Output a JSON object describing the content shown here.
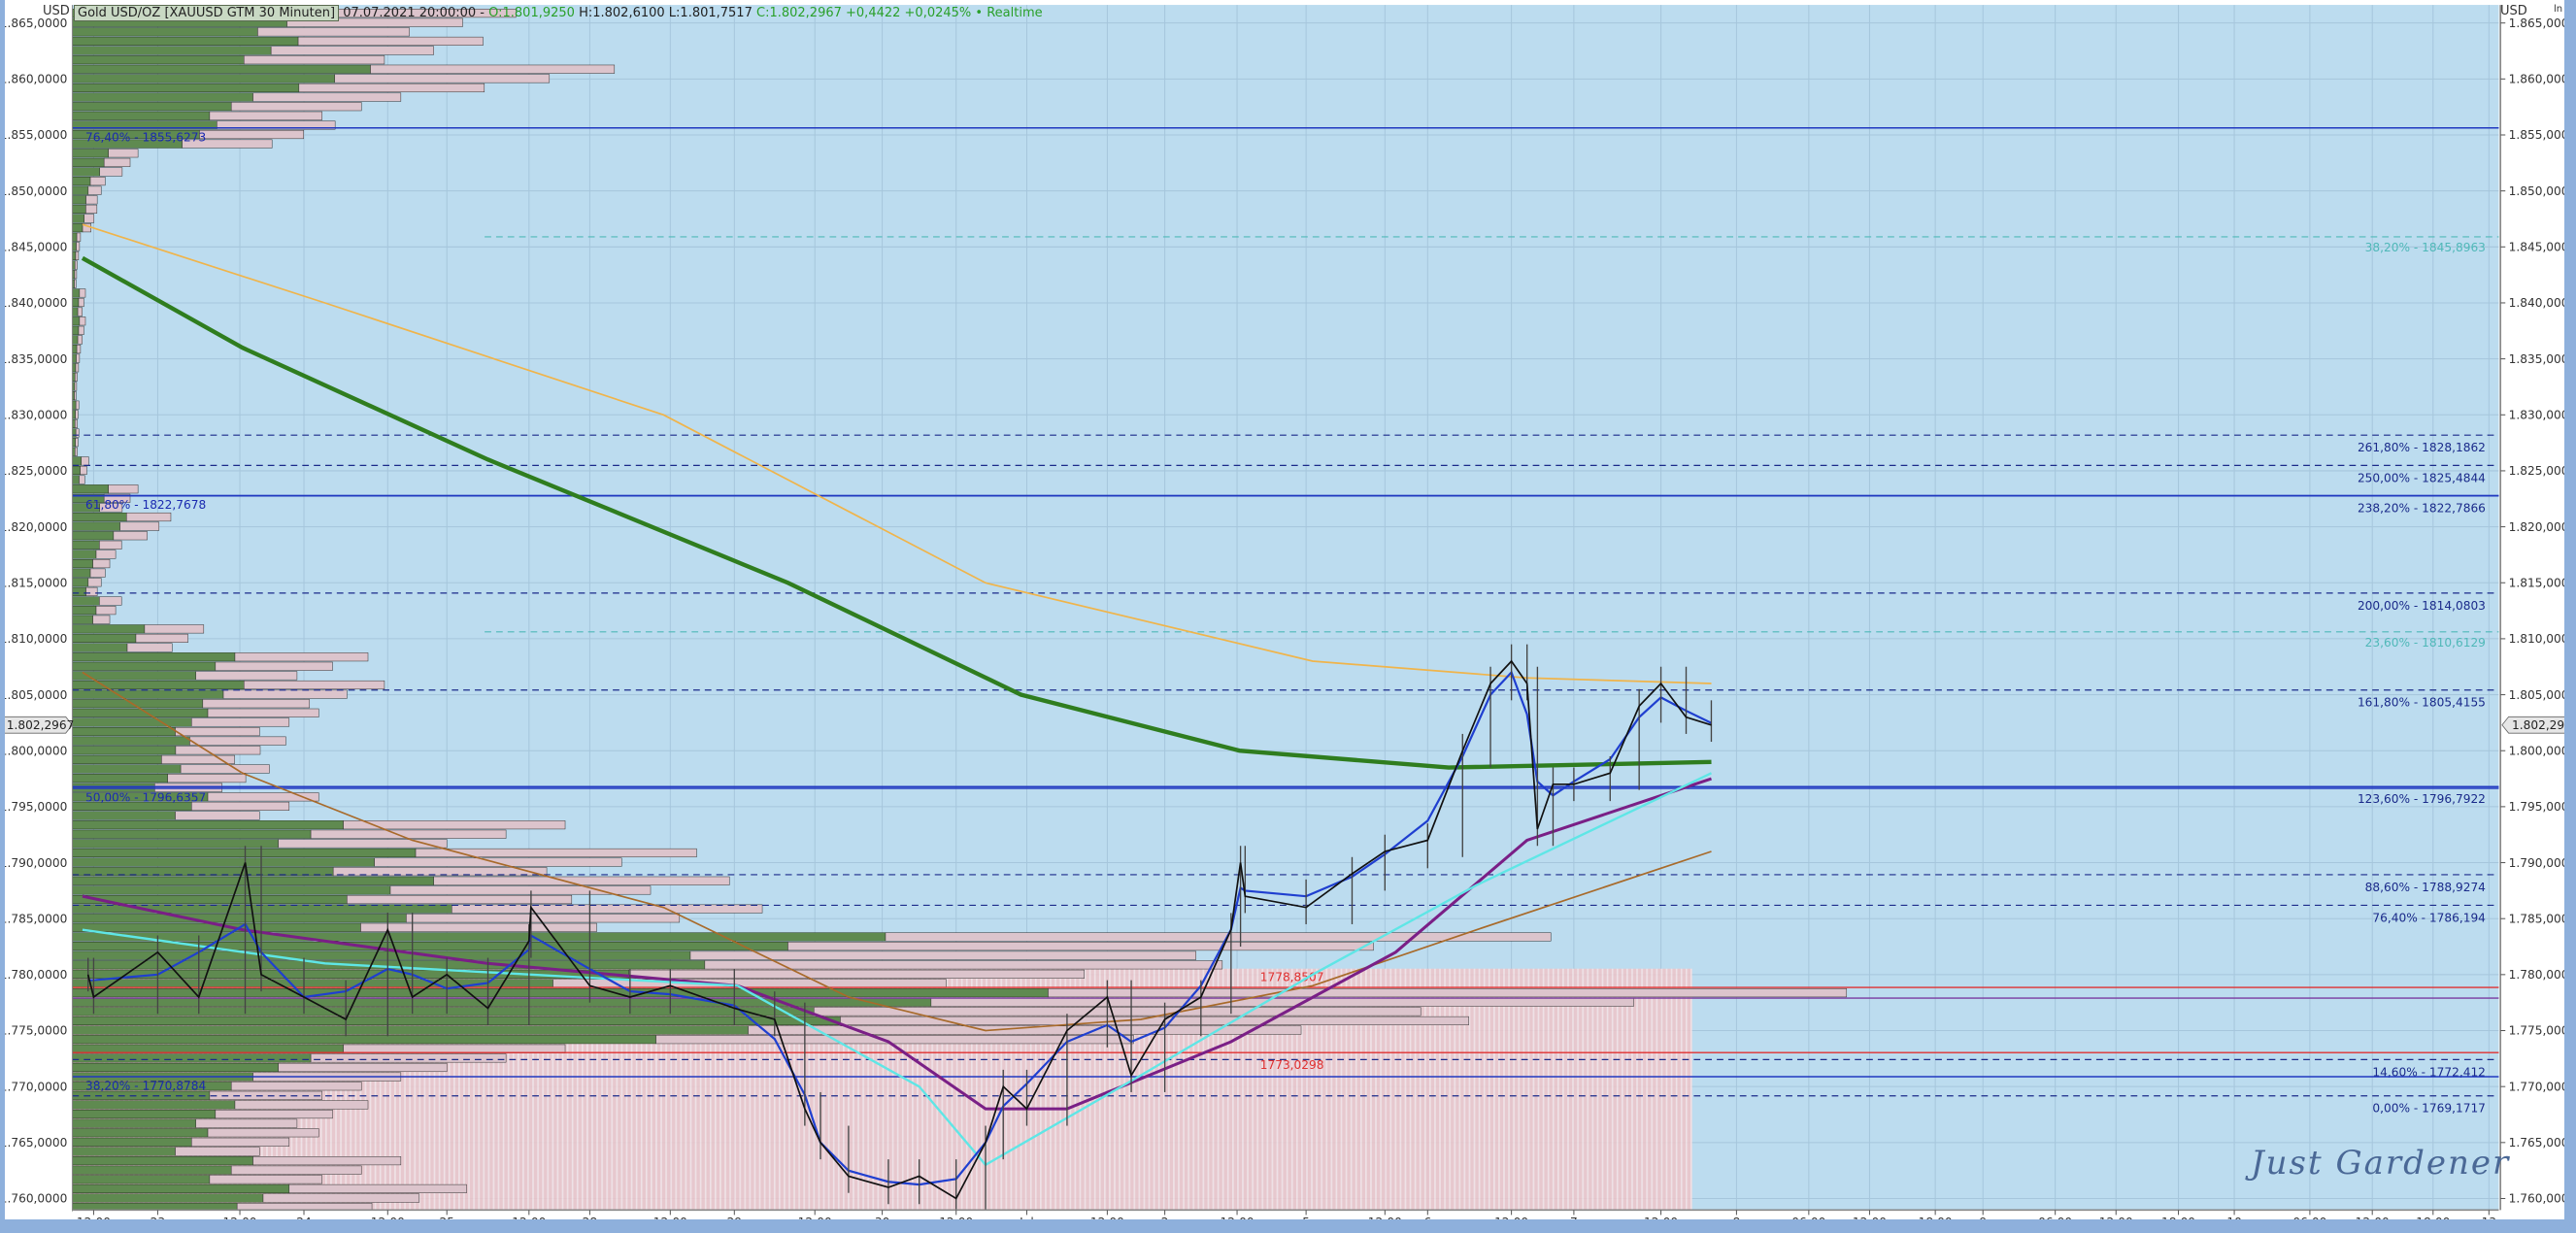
{
  "header": {
    "instrument": "Gold USD/OZ [XAUUSD GTM 30 Minuten]",
    "datetime": "07.07.2021 20:00:00 -",
    "open": "O:1.801,9250",
    "high_low": "H:1.802,6100 L:1.801,7517",
    "close_change": "C:1.802,2967 +0,4422 +0,0245%",
    "realtime": "• Realtime"
  },
  "axis": {
    "unit_left": "USD",
    "unit_right": "USD",
    "scale_icon": "ln",
    "current_price": "1.802,2967"
  },
  "watermark": "Just Gardener",
  "colors": {
    "plot_bg": "#bcdcef",
    "grid": "#a6c6dc",
    "price": "#111111",
    "fast_ma": "#1f3fd0",
    "ma_orange": "#f0b44a",
    "ma_green": "#2f7d1f",
    "ma_brown": "#a86a2a",
    "ma_purple": "#7a1f86",
    "ma_cyan": "#5fe6e6",
    "fib_dark": "#1a2a8a",
    "fib_cyan": "#4fb8b8",
    "support_red": "#e03030",
    "profile_green": "#5f8a50",
    "profile_pink": "#dcc4cc",
    "volume_pink": "#f0c8cc"
  },
  "chart_data": {
    "type": "candlestick",
    "title": "Gold USD/OZ [XAUUSD GTM 30 Minuten]",
    "ylabel": "USD",
    "ylim": [
      1760,
      1865
    ],
    "y_scale": "ln",
    "grid": true,
    "y_ticks": [
      "1.865,0000",
      "1.860,0000",
      "1.855,0000",
      "1.850,0000",
      "1.845,0000",
      "1.840,0000",
      "1.835,0000",
      "1.830,0000",
      "1.825,0000",
      "1.820,0000",
      "1.815,0000",
      "1.810,0000",
      "1.805,0000",
      "1.800,0000",
      "1.795,0000",
      "1.790,0000",
      "1.785,0000",
      "1.780,0000",
      "1.775,0000",
      "1.770,0000",
      "1.765,0000",
      "1.760,0000"
    ],
    "x_ticks": [
      {
        "label": "12:00",
        "time": "06-22 12:00"
      },
      {
        "label": "23",
        "time": "06-23 00:00"
      },
      {
        "label": "12:00",
        "time": "06-23 12:00"
      },
      {
        "label": "24",
        "time": "06-24 00:00"
      },
      {
        "label": "12:00",
        "time": "06-24 12:00"
      },
      {
        "label": "25",
        "time": "06-25 00:00"
      },
      {
        "label": "12:00",
        "time": "06-25 12:00"
      },
      {
        "label": "28",
        "time": "06-28 00:00"
      },
      {
        "label": "12:00",
        "time": "06-28 12:00"
      },
      {
        "label": "29",
        "time": "06-29 00:00"
      },
      {
        "label": "12:00",
        "time": "06-29 12:00"
      },
      {
        "label": "30",
        "time": "06-30 00:00"
      },
      {
        "label": "12:00",
        "time": "06-30 12:00"
      },
      {
        "label": "Jul",
        "time": "07-01 00:00"
      },
      {
        "label": "12:00",
        "time": "07-01 12:00"
      },
      {
        "label": "2",
        "time": "07-02 00:00"
      },
      {
        "label": "12:00",
        "time": "07-02 12:00"
      },
      {
        "label": "5",
        "time": "07-05 00:00"
      },
      {
        "label": "12:00",
        "time": "07-05 12:00"
      },
      {
        "label": "6",
        "time": "07-06 00:00"
      },
      {
        "label": "12:00",
        "time": "07-06 12:00"
      },
      {
        "label": "7",
        "time": "07-07 00:00"
      },
      {
        "label": "12:00",
        "time": "07-07 12:00"
      },
      {
        "label": "8",
        "time": "07-08 00:00"
      },
      {
        "label": "06:00",
        "time": "07-08 06:00"
      },
      {
        "label": "12:00",
        "time": "07-08 12:00"
      },
      {
        "label": "18:00",
        "time": "07-08 18:00"
      },
      {
        "label": "9",
        "time": "07-09 00:00"
      },
      {
        "label": "06:00",
        "time": "07-09 06:00"
      },
      {
        "label": "12:00",
        "time": "07-09 12:00"
      },
      {
        "label": "18:00",
        "time": "07-09 18:00"
      },
      {
        "label": "10",
        "time": "07-10 00:00"
      },
      {
        "label": "06:00",
        "time": "07-10 06:00"
      },
      {
        "label": "12:00",
        "time": "07-10 12:00"
      },
      {
        "label": "18:00",
        "time": "07-10 18:00"
      },
      {
        "label": "13",
        "time": "07-13 00:00"
      }
    ],
    "price_close": [
      [
        "06-22 11:00",
        1780
      ],
      [
        "06-22 12:00",
        1778
      ],
      [
        "06-23 00:00",
        1782
      ],
      [
        "06-23 06:00",
        1778
      ],
      [
        "06-23 13:00",
        1790
      ],
      [
        "06-23 16:00",
        1780
      ],
      [
        "06-24 00:00",
        1778
      ],
      [
        "06-24 06:00",
        1776
      ],
      [
        "06-24 12:00",
        1784
      ],
      [
        "06-24 17:00",
        1778
      ],
      [
        "06-25 00:00",
        1780
      ],
      [
        "06-25 06:00",
        1777
      ],
      [
        "06-25 12:00",
        1783
      ],
      [
        "06-25 14:00",
        1786
      ],
      [
        "06-28 00:00",
        1779
      ],
      [
        "06-28 06:00",
        1778
      ],
      [
        "06-28 12:00",
        1779
      ],
      [
        "06-29 00:00",
        1777
      ],
      [
        "06-29 06:00",
        1776
      ],
      [
        "06-29 10:30",
        1768
      ],
      [
        "06-29 13:00",
        1765
      ],
      [
        "06-29 18:00",
        1762
      ],
      [
        "06-30 01:00",
        1761
      ],
      [
        "06-30 06:00",
        1762
      ],
      [
        "06-30 12:00",
        1760
      ],
      [
        "06-30 17:00",
        1765
      ],
      [
        "06-30 20:00",
        1770
      ],
      [
        "07-01 00:00",
        1768
      ],
      [
        "07-01 06:00",
        1775
      ],
      [
        "07-01 12:00",
        1778
      ],
      [
        "07-01 17:00",
        1771
      ],
      [
        "07-02 00:00",
        1776
      ],
      [
        "07-02 06:00",
        1778
      ],
      [
        "07-02 11:00",
        1784
      ],
      [
        "07-02 15:00",
        1790
      ],
      [
        "07-02 19:00",
        1787
      ],
      [
        "07-05 00:00",
        1786
      ],
      [
        "07-05 07:00",
        1789
      ],
      [
        "07-05 12:00",
        1791
      ],
      [
        "07-06 00:00",
        1792
      ],
      [
        "07-06 05:00",
        1800
      ],
      [
        "07-06 09:00",
        1806
      ],
      [
        "07-06 12:00",
        1808
      ],
      [
        "07-06 15:00",
        1806
      ],
      [
        "07-06 17:00",
        1793
      ],
      [
        "07-06 20:00",
        1797
      ],
      [
        "07-07 00:00",
        1797
      ],
      [
        "07-07 05:00",
        1798
      ],
      [
        "07-07 09:00",
        1804
      ],
      [
        "07-07 12:00",
        1806
      ],
      [
        "07-07 16:00",
        1803
      ],
      [
        "07-07 20:00",
        1802.2967
      ]
    ],
    "moving_averages": [
      {
        "color": "ma_green",
        "points": [
          [
            "06-22 10:00",
            1844
          ],
          [
            "06-23 12:30",
            1836
          ],
          [
            "06-25 06:00",
            1826
          ],
          [
            "06-29 08:00",
            1815
          ],
          [
            "06-30 23:00",
            1805
          ],
          [
            "07-02 14:00",
            1800
          ],
          [
            "07-06 03:00",
            1798.5
          ],
          [
            "07-07 20:00",
            1799
          ]
        ]
      },
      {
        "color": "ma_orange",
        "points": [
          [
            "06-22 10:00",
            1847
          ],
          [
            "06-24 03:00",
            1840
          ],
          [
            "06-28 11:00",
            1830
          ],
          [
            "06-30 17:00",
            1815
          ],
          [
            "07-05 01:00",
            1808
          ],
          [
            "07-06 15:00",
            1806.5
          ],
          [
            "07-07 20:00",
            1806
          ]
        ]
      },
      {
        "color": "ma_brown",
        "points": [
          [
            "06-22 10:00",
            1807
          ],
          [
            "06-23 12:30",
            1798
          ],
          [
            "06-24 17:00",
            1792
          ],
          [
            "06-28 11:00",
            1786
          ],
          [
            "06-29 18:00",
            1778
          ],
          [
            "06-30 17:00",
            1775
          ],
          [
            "07-01 19:00",
            1776
          ],
          [
            "07-05 01:00",
            1779
          ],
          [
            "07-06 07:00",
            1784
          ],
          [
            "07-07 20:00",
            1791
          ]
        ]
      },
      {
        "color": "ma_purple",
        "points": [
          [
            "06-22 10:00",
            1787
          ],
          [
            "06-23 12:30",
            1784
          ],
          [
            "06-25 06:00",
            1781
          ],
          [
            "06-29 00:30",
            1779
          ],
          [
            "06-30 01:00",
            1774
          ],
          [
            "06-30 17:00",
            1768
          ],
          [
            "07-01 06:00",
            1768
          ],
          [
            "07-02 11:00",
            1774
          ],
          [
            "07-05 15:00",
            1782
          ],
          [
            "07-06 15:00",
            1792
          ],
          [
            "07-07 20:00",
            1797.5
          ]
        ]
      },
      {
        "color": "ma_cyan",
        "points": [
          [
            "06-22 10:00",
            1784
          ],
          [
            "06-24 03:00",
            1781
          ],
          [
            "06-29 00:30",
            1779
          ],
          [
            "06-30 06:00",
            1770
          ],
          [
            "06-30 17:00",
            1763
          ],
          [
            "07-01 19:00",
            1771
          ],
          [
            "07-05 01:00",
            1780
          ],
          [
            "07-06 07:00",
            1788
          ],
          [
            "07-07 20:00",
            1798
          ]
        ]
      }
    ],
    "fib_right": [
      {
        "label": "38,20% - 1845,8963",
        "price": 1845.8963,
        "style": "cyan"
      },
      {
        "label": "261,80% - 1828,1862",
        "price": 1828.1862,
        "style": "dashed"
      },
      {
        "label": "250,00% - 1825,4844",
        "price": 1825.4844,
        "style": "dashed"
      },
      {
        "label": "238,20% - 1822,7866",
        "price": 1822.7866,
        "style": "solid"
      },
      {
        "label": "200,00% - 1814,0803",
        "price": 1814.0803,
        "style": "dashed"
      },
      {
        "label": "23,60% - 1810,6129",
        "price": 1810.6129,
        "style": "cyan"
      },
      {
        "label": "161,80% - 1805,4155",
        "price": 1805.4155,
        "style": "dashed"
      },
      {
        "label": "123,60% - 1796,7922",
        "price": 1796.7922,
        "style": "solid"
      },
      {
        "label": "88,60% - 1788,9274",
        "price": 1788.9274,
        "style": "dashed"
      },
      {
        "label": "76,40% - 1786,194",
        "price": 1786.194,
        "style": "dashed"
      },
      {
        "label": "14,60% - 1772,412",
        "price": 1772.412,
        "style": "dashed"
      },
      {
        "label": "0,00% - 1769,1717",
        "price": 1769.1717,
        "style": "dashed"
      }
    ],
    "fib_left": [
      {
        "label": "76,40% - 1855,6273",
        "price": 1855.6273
      },
      {
        "label": "61,80% - 1822,7678",
        "price": 1822.7678
      },
      {
        "label": "50,00% - 1796,6357",
        "price": 1796.6357
      },
      {
        "label": "38,20% - 1770,8784",
        "price": 1770.8784
      }
    ],
    "support_levels": [
      {
        "label": "1778,8507",
        "price": 1778.8507
      },
      {
        "label": "1773,0298",
        "price": 1773.0298
      }
    ],
    "purple_level": 1777.9,
    "volume_profile": [
      [
        1865,
        270
      ],
      [
        1862.5,
        250
      ],
      [
        1860,
        330
      ],
      [
        1857.5,
        200
      ],
      [
        1855,
        160
      ],
      [
        1852.5,
        40
      ],
      [
        1850,
        20
      ],
      [
        1847.5,
        15
      ],
      [
        1845,
        5
      ],
      [
        1842.5,
        3
      ],
      [
        1840,
        8
      ],
      [
        1837.5,
        8
      ],
      [
        1835,
        5
      ],
      [
        1832.5,
        3
      ],
      [
        1830,
        4
      ],
      [
        1827.5,
        4
      ],
      [
        1825,
        10
      ],
      [
        1822.5,
        40
      ],
      [
        1820,
        60
      ],
      [
        1817.5,
        30
      ],
      [
        1815,
        20
      ],
      [
        1812.5,
        30
      ],
      [
        1810,
        80
      ],
      [
        1807.5,
        180
      ],
      [
        1805,
        190
      ],
      [
        1802.5,
        150
      ],
      [
        1800,
        130
      ],
      [
        1797.5,
        120
      ],
      [
        1795,
        150
      ],
      [
        1792.5,
        300
      ],
      [
        1790,
        380
      ],
      [
        1787.5,
        400
      ],
      [
        1785,
        420
      ],
      [
        1782.5,
        900
      ],
      [
        1780,
        700
      ],
      [
        1777.5,
        1080
      ],
      [
        1775,
        850
      ],
      [
        1772.5,
        300
      ],
      [
        1770,
        200
      ],
      [
        1767.5,
        180
      ],
      [
        1765,
        150
      ],
      [
        1762.5,
        200
      ],
      [
        1760,
        240
      ]
    ]
  }
}
